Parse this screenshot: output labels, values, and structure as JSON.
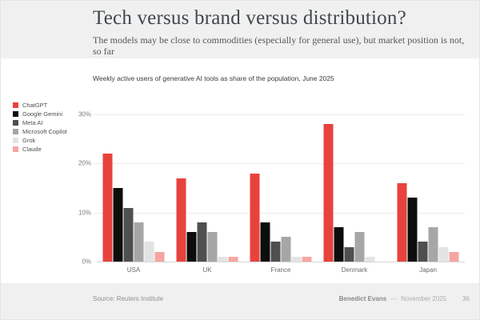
{
  "slide": {
    "title": "Tech versus brand versus distribution?",
    "subtitle": "The models may be close to commodities (especially for general use), but market position is not, so far"
  },
  "chart_data": {
    "type": "bar",
    "title": "Weekly active users of generative AI tools as share of the population, June 2025",
    "categories": [
      "USA",
      "UK",
      "France",
      "Denmark",
      "Japan"
    ],
    "series": [
      {
        "name": "ChatGPT",
        "color": "#e8423d",
        "values": [
          22,
          17,
          18,
          28,
          16
        ]
      },
      {
        "name": "Google Gemini",
        "color": "#0d0d0d",
        "values": [
          15,
          6,
          8,
          7,
          13
        ]
      },
      {
        "name": "Meta AI",
        "color": "#4f4f4f",
        "values": [
          11,
          8,
          4,
          3,
          4
        ]
      },
      {
        "name": "Microsoft Copilot",
        "color": "#a6a6a6",
        "values": [
          8,
          6,
          5,
          6,
          7
        ]
      },
      {
        "name": "Grok",
        "color": "#e3e3e3",
        "values": [
          4,
          1,
          1,
          1,
          3
        ]
      },
      {
        "name": "Claude",
        "color": "#f5a6a2",
        "values": [
          2,
          1,
          1,
          0,
          2
        ]
      }
    ],
    "xlabel": "",
    "ylabel": "",
    "ylim": [
      0,
      30
    ],
    "yticks": [
      "0%",
      "10%",
      "20%",
      "30%"
    ],
    "grid": true,
    "legend_position": "left",
    "unit": "% of population"
  },
  "footer": {
    "source": "Source: Reuters Institute",
    "author": "Benedict Evans",
    "separator": "—",
    "date": "November 2025",
    "page": "36"
  }
}
